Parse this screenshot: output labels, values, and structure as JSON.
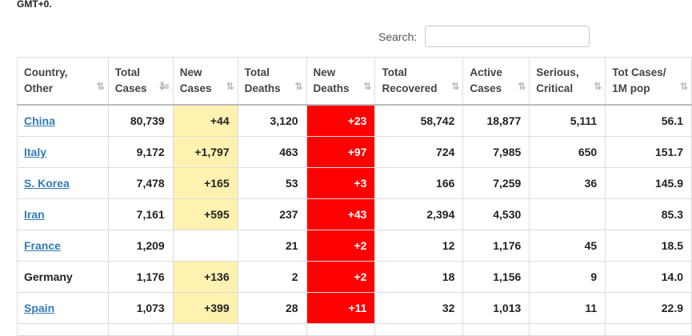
{
  "header": {
    "timezone": "GMT+0."
  },
  "search": {
    "label": "Search:",
    "value": "",
    "placeholder": ""
  },
  "columns": [
    {
      "line1": "Country,",
      "line2": "Other"
    },
    {
      "line1": "Total",
      "line2": "Cases"
    },
    {
      "line1": "New",
      "line2": "Cases"
    },
    {
      "line1": "Total",
      "line2": "Deaths"
    },
    {
      "line1": "New",
      "line2": "Deaths"
    },
    {
      "line1": "Total",
      "line2": "Recovered"
    },
    {
      "line1": "Active",
      "line2": "Cases"
    },
    {
      "line1": "Serious,",
      "line2": "Critical"
    },
    {
      "line1": "Tot Cases/",
      "line2": "1M pop"
    }
  ],
  "sort_icons": {
    "default": "⇅",
    "active": "⇩≡"
  },
  "rows": [
    {
      "country": "China",
      "link": true,
      "total_cases": "80,739",
      "new_cases": "+44",
      "total_deaths": "3,120",
      "new_deaths": "+23",
      "total_recovered": "58,742",
      "active_cases": "18,877",
      "serious_critical": "5,111",
      "per_million": "56.1"
    },
    {
      "country": "Italy",
      "link": true,
      "total_cases": "9,172",
      "new_cases": "+1,797",
      "total_deaths": "463",
      "new_deaths": "+97",
      "total_recovered": "724",
      "active_cases": "7,985",
      "serious_critical": "650",
      "per_million": "151.7"
    },
    {
      "country": "S. Korea",
      "link": true,
      "total_cases": "7,478",
      "new_cases": "+165",
      "total_deaths": "53",
      "new_deaths": "+3",
      "total_recovered": "166",
      "active_cases": "7,259",
      "serious_critical": "36",
      "per_million": "145.9"
    },
    {
      "country": "Iran",
      "link": true,
      "total_cases": "7,161",
      "new_cases": "+595",
      "total_deaths": "237",
      "new_deaths": "+43",
      "total_recovered": "2,394",
      "active_cases": "4,530",
      "serious_critical": "",
      "per_million": "85.3"
    },
    {
      "country": "France",
      "link": true,
      "total_cases": "1,209",
      "new_cases": "",
      "total_deaths": "21",
      "new_deaths": "+2",
      "total_recovered": "12",
      "active_cases": "1,176",
      "serious_critical": "45",
      "per_million": "18.5"
    },
    {
      "country": "Germany",
      "link": false,
      "total_cases": "1,176",
      "new_cases": "+136",
      "total_deaths": "2",
      "new_deaths": "+2",
      "total_recovered": "18",
      "active_cases": "1,156",
      "serious_critical": "9",
      "per_million": "14.0"
    },
    {
      "country": "Spain",
      "link": true,
      "total_cases": "1,073",
      "new_cases": "+399",
      "total_deaths": "28",
      "new_deaths": "+11",
      "total_recovered": "32",
      "active_cases": "1,013",
      "serious_critical": "11",
      "per_million": "22.9"
    }
  ],
  "colors": {
    "new_cases_bg": "#fff1b0",
    "new_deaths_bg": "#ff0000",
    "link": "#337ab7"
  }
}
